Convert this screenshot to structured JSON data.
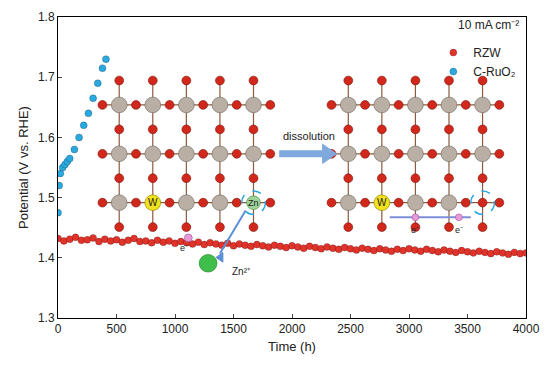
{
  "chart_data": {
    "type": "scatter",
    "x_label": "Time (h)",
    "y_label": "Potential (V vs. RHE)",
    "xlim": [
      0,
      4000
    ],
    "xticks": [
      0,
      500,
      1000,
      1500,
      2000,
      2500,
      3000,
      3500,
      4000
    ],
    "ylim": [
      1.3,
      1.8
    ],
    "yticks": [
      1.3,
      1.4,
      1.5,
      1.6,
      1.7,
      1.8
    ],
    "grid": false,
    "legend": "upper right",
    "annotations": [
      "10 mA cm⁻²",
      "dissolution",
      "W",
      "Zn",
      "Zn²⁺",
      "e⁻",
      "W",
      "e⁻",
      "e⁻"
    ],
    "series": [
      {
        "name": "RZW",
        "color": "#e2332b",
        "marker": "circle",
        "x": [
          0,
          50,
          100,
          150,
          200,
          250,
          300,
          350,
          400,
          450,
          500,
          550,
          600,
          650,
          700,
          750,
          800,
          850,
          900,
          950,
          1000,
          1050,
          1100,
          1150,
          1200,
          1250,
          1300,
          1350,
          1400,
          1450,
          1500,
          1550,
          1600,
          1650,
          1700,
          1750,
          1800,
          1850,
          1900,
          1950,
          2000,
          2050,
          2100,
          2150,
          2200,
          2250,
          2300,
          2350,
          2400,
          2450,
          2500,
          2550,
          2600,
          2650,
          2700,
          2750,
          2800,
          2850,
          2900,
          2950,
          3000,
          3050,
          3100,
          3150,
          3200,
          3250,
          3300,
          3350,
          3400,
          3450,
          3500,
          3550,
          3600,
          3650,
          3700,
          3750,
          3800,
          3850,
          3900,
          3950,
          4000
        ],
        "values": [
          1.432,
          1.428,
          1.431,
          1.434,
          1.429,
          1.43,
          1.433,
          1.427,
          1.431,
          1.428,
          1.43,
          1.426,
          1.429,
          1.432,
          1.427,
          1.428,
          1.425,
          1.429,
          1.426,
          1.428,
          1.424,
          1.427,
          1.425,
          1.423,
          1.426,
          1.422,
          1.425,
          1.423,
          1.421,
          1.424,
          1.42,
          1.423,
          1.421,
          1.419,
          1.422,
          1.42,
          1.418,
          1.421,
          1.419,
          1.417,
          1.42,
          1.418,
          1.416,
          1.419,
          1.417,
          1.415,
          1.418,
          1.416,
          1.414,
          1.417,
          1.415,
          1.413,
          1.416,
          1.414,
          1.412,
          1.415,
          1.413,
          1.411,
          1.414,
          1.412,
          1.415,
          1.413,
          1.411,
          1.414,
          1.412,
          1.41,
          1.413,
          1.411,
          1.409,
          1.412,
          1.41,
          1.408,
          1.411,
          1.409,
          1.407,
          1.41,
          1.408,
          1.406,
          1.409,
          1.407,
          1.408
        ]
      },
      {
        "name": "C-RuO₂",
        "color": "#29a9e0",
        "marker": "circle",
        "x": [
          0,
          10,
          20,
          40,
          60,
          80,
          100,
          140,
          180,
          220,
          260,
          300,
          340,
          380,
          410
        ],
        "values": [
          1.475,
          1.52,
          1.54,
          1.55,
          1.555,
          1.56,
          1.565,
          1.58,
          1.6,
          1.62,
          1.64,
          1.665,
          1.69,
          1.715,
          1.73
        ]
      }
    ]
  }
}
